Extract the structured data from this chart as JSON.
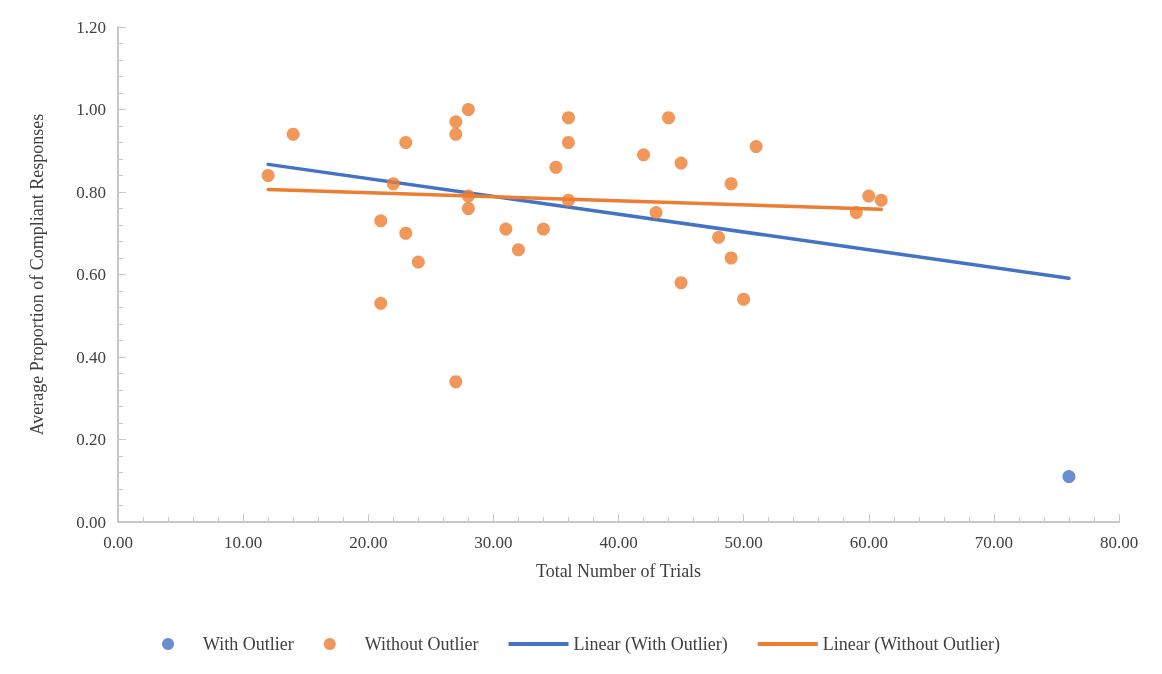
{
  "chart_data": {
    "type": "scatter",
    "xlabel": "Total Number of Trials",
    "ylabel": "Average Proportion of Compliant Responses",
    "xlim": [
      0,
      80
    ],
    "xticks": [
      {
        "value": 0,
        "label": "0.00"
      },
      {
        "value": 10,
        "label": "10.00"
      },
      {
        "value": 20,
        "label": "20.00"
      },
      {
        "value": 30,
        "label": "30.00"
      },
      {
        "value": 40,
        "label": "40.00"
      },
      {
        "value": 50,
        "label": "50.00"
      },
      {
        "value": 60,
        "label": "60.00"
      },
      {
        "value": 70,
        "label": "70.00"
      },
      {
        "value": 80,
        "label": "80.00"
      }
    ],
    "ylim": [
      0,
      1.2
    ],
    "yticks": [
      {
        "value": 0,
        "label": "0.00"
      },
      {
        "value": 0.2,
        "label": "0.20"
      },
      {
        "value": 0.4,
        "label": "0.40"
      },
      {
        "value": 0.6,
        "label": "0.60"
      },
      {
        "value": 0.8,
        "label": "0.80"
      },
      {
        "value": 1,
        "label": "1.00"
      },
      {
        "value": 1.2,
        "label": "1.20"
      }
    ],
    "grid": false,
    "legend": "bottom",
    "marker": "circle",
    "series": [
      {
        "name": "With Outlier",
        "color": "#4472c4",
        "x": [
          76
        ],
        "values": [
          0.11
        ]
      },
      {
        "name": "Without Outlier",
        "color": "#ed7d31",
        "x": [
          12,
          14,
          21,
          21,
          22,
          23,
          23,
          24,
          27,
          27,
          27,
          28,
          28,
          28,
          31,
          32,
          34,
          35,
          36,
          36,
          36,
          42,
          43,
          44,
          45,
          45,
          48,
          49,
          49,
          50,
          51,
          59,
          60,
          61
        ],
        "values": [
          0.84,
          0.94,
          0.73,
          0.53,
          0.82,
          0.92,
          0.7,
          0.63,
          0.97,
          0.94,
          0.34,
          1.0,
          0.79,
          0.76,
          0.71,
          0.66,
          0.71,
          0.86,
          0.98,
          0.92,
          0.78,
          0.89,
          0.75,
          0.98,
          0.87,
          0.58,
          0.69,
          0.82,
          0.64,
          0.54,
          0.91,
          0.75,
          0.79,
          0.78
        ]
      },
      {
        "name": "Linear (With Outlier)",
        "type": "line",
        "marker": "none",
        "color": "#4472c4",
        "x": [
          12,
          76
        ],
        "values": [
          0.867,
          0.591
        ]
      },
      {
        "name": "Linear (Without Outlier)",
        "type": "line",
        "marker": "none",
        "color": "#ed7d31",
        "x": [
          12,
          61
        ],
        "values": [
          0.806,
          0.758
        ]
      }
    ]
  }
}
